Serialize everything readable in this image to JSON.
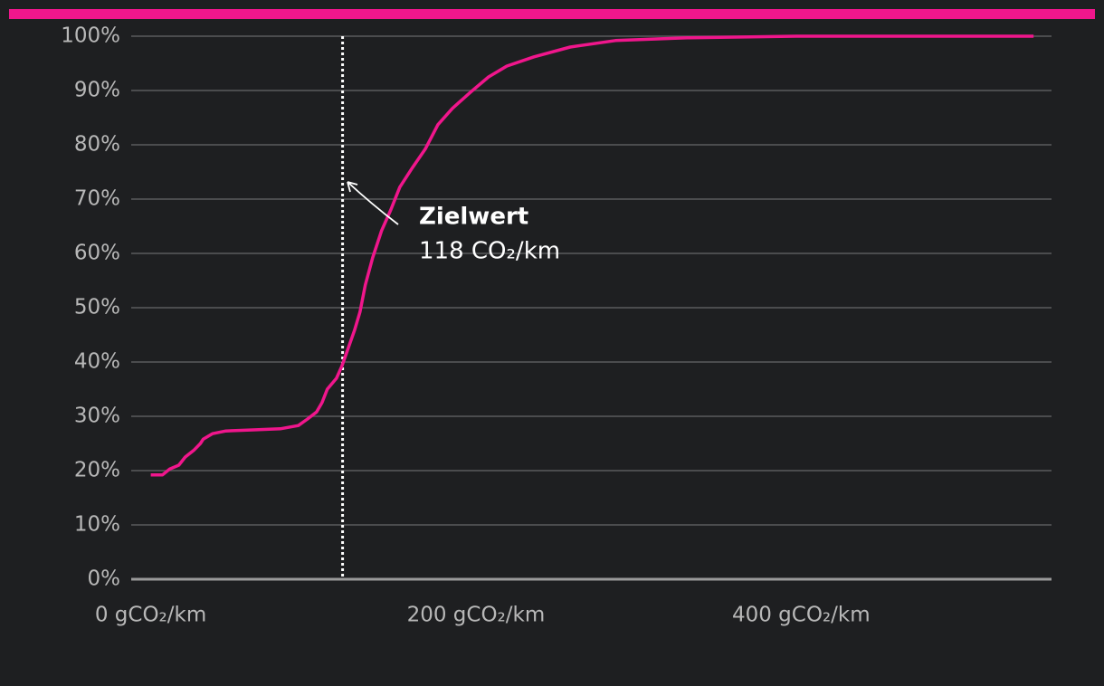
{
  "chart_data": {
    "type": "line",
    "x": [
      0,
      7.2,
      11.7,
      17.3,
      21.2,
      26.7,
      30.6,
      32.3,
      37.9,
      46.2,
      63,
      79.7,
      90.8,
      96.4,
      102,
      105.3,
      108.6,
      114.2,
      117.5,
      121.4,
      125.3,
      128.7,
      132,
      136.5,
      142,
      147.6,
      153.2,
      161,
      168.8,
      176.6,
      185.5,
      196.7,
      207.8,
      219,
      235.7,
      258,
      285.8,
      330,
      397,
      543
    ],
    "series": [
      {
        "color": "#f0168c",
        "values": [
          19.2,
          19.2,
          20.3,
          21,
          22.5,
          23.8,
          25,
          25.8,
          26.8,
          27.3,
          27.5,
          27.7,
          28.3,
          29.5,
          30.8,
          32.5,
          35,
          37,
          39.2,
          42.5,
          45.8,
          49.2,
          54.2,
          59.2,
          64.2,
          68,
          72.2,
          75.8,
          79.2,
          83.7,
          86.7,
          89.7,
          92.5,
          94.5,
          96.2,
          98,
          99.2,
          99.7,
          100,
          100
        ]
      }
    ],
    "xlim": [
      -12,
      554
    ],
    "xticks": [
      {
        "value": 0,
        "label": "0 gCO₂/km"
      },
      {
        "value": 200,
        "label": "200 gCO₂/km"
      },
      {
        "value": 400,
        "label": "400 gCO₂/km"
      }
    ],
    "ylim": [
      0,
      100
    ],
    "yticks": [
      {
        "value": 0,
        "label": "0%"
      },
      {
        "value": 10,
        "label": "10%"
      },
      {
        "value": 20,
        "label": "20%"
      },
      {
        "value": 30,
        "label": "30%"
      },
      {
        "value": 40,
        "label": "40%"
      },
      {
        "value": 50,
        "label": "50%"
      },
      {
        "value": 60,
        "label": "60%"
      },
      {
        "value": 70,
        "label": "70%"
      },
      {
        "value": 80,
        "label": "80%"
      },
      {
        "value": 90,
        "label": "90%"
      },
      {
        "value": 100,
        "label": "100%"
      }
    ],
    "grid": true,
    "target": {
      "value": 118,
      "label": "Zielwert",
      "sublabel": "118 CO₂/km"
    }
  }
}
